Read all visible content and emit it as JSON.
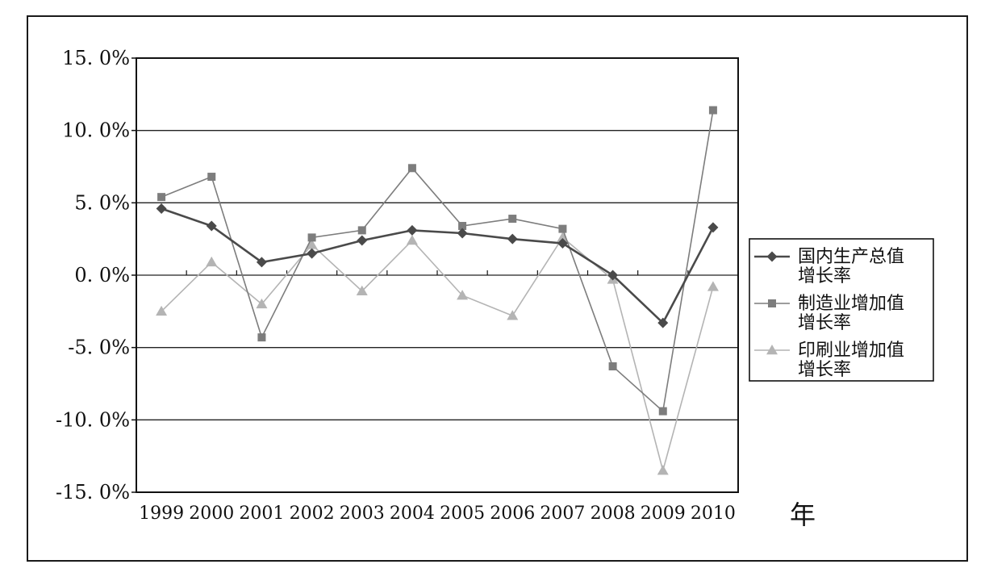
{
  "chart_data": {
    "type": "line",
    "categories": [
      "1999",
      "2000",
      "2001",
      "2002",
      "2003",
      "2004",
      "2005",
      "2006",
      "2007",
      "2008",
      "2009",
      "2010"
    ],
    "xlabel": "年",
    "ylabel": "",
    "ylim": [
      -15,
      15
    ],
    "yticks": [
      15,
      10,
      5,
      0,
      -5,
      -10,
      -15
    ],
    "ytick_labels": [
      "15. 0%",
      "10. 0%",
      "5. 0%",
      "0. 0%",
      "-5. 0%",
      "-10. 0%",
      "-15. 0%"
    ],
    "grid": "horizontal",
    "legend_position": "right",
    "series": [
      {
        "name": [
          "国内生产总值",
          "增长率"
        ],
        "marker": "diamond",
        "color": "#4a4a4a",
        "values": [
          4.6,
          3.4,
          0.9,
          1.5,
          2.4,
          3.1,
          2.9,
          2.5,
          2.2,
          0.0,
          -3.3,
          3.3
        ]
      },
      {
        "name": [
          "制造业增加值",
          "增长率"
        ],
        "marker": "square",
        "color": "#7d7d7d",
        "values": [
          5.4,
          6.8,
          -4.3,
          2.6,
          3.1,
          7.4,
          3.4,
          3.9,
          3.2,
          -6.3,
          -9.4,
          11.4
        ]
      },
      {
        "name": [
          "印刷业增加值",
          "增长率"
        ],
        "marker": "triangle",
        "color": "#b4b4b4",
        "values": [
          -2.5,
          0.9,
          -2.0,
          2.1,
          -1.1,
          2.4,
          -1.4,
          -2.8,
          2.6,
          -0.3,
          -13.5,
          -0.8
        ]
      }
    ]
  }
}
